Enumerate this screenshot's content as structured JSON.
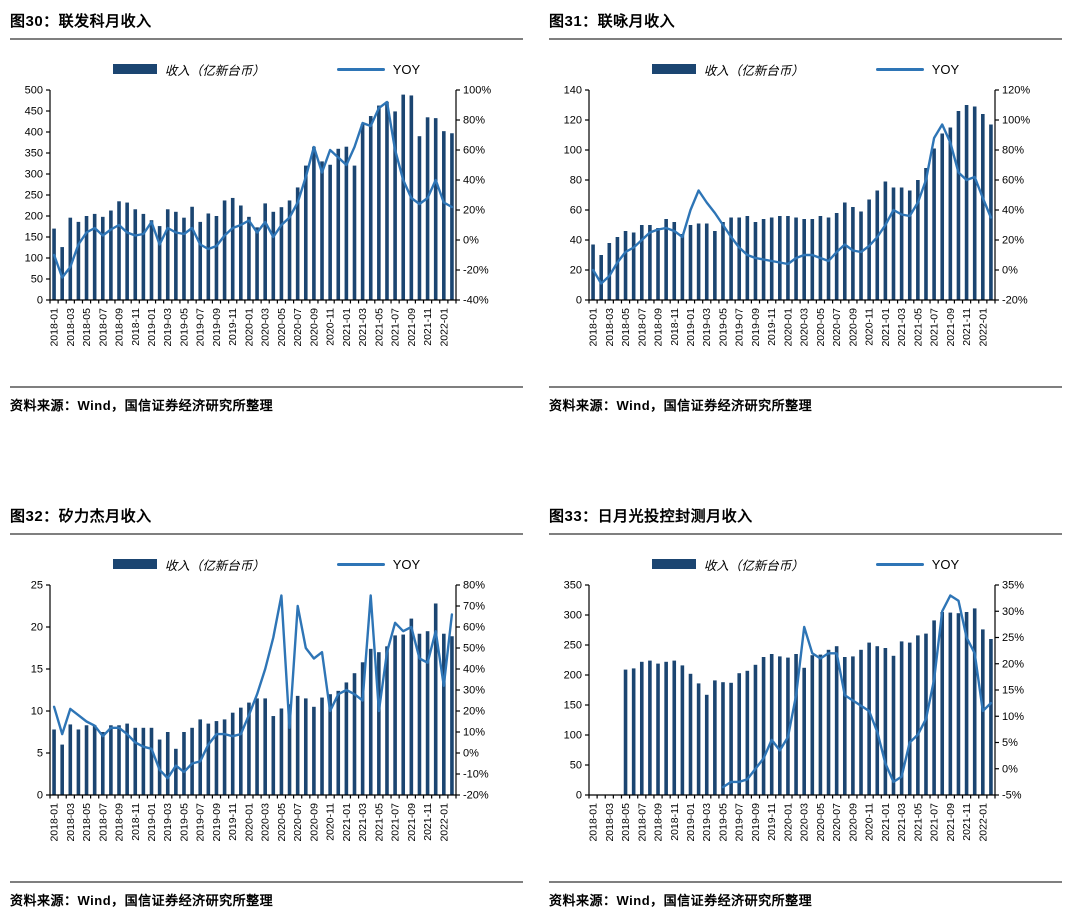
{
  "page": {
    "source_note": "资料来源：Wind，国信证券经济研究所整理"
  },
  "chart_data": [
    {
      "type": "bar+line",
      "title": "图30：联发科月收入",
      "legend_position": "top-center",
      "grid": false,
      "categories": [
        "2018-01",
        "2018-02",
        "2018-03",
        "2018-04",
        "2018-05",
        "2018-06",
        "2018-07",
        "2018-08",
        "2018-09",
        "2018-10",
        "2018-11",
        "2018-12",
        "2019-01",
        "2019-02",
        "2019-03",
        "2019-04",
        "2019-05",
        "2019-06",
        "2019-07",
        "2019-08",
        "2019-09",
        "2019-10",
        "2019-11",
        "2019-12",
        "2020-01",
        "2020-02",
        "2020-03",
        "2020-04",
        "2020-05",
        "2020-06",
        "2020-07",
        "2020-08",
        "2020-09",
        "2020-10",
        "2020-11",
        "2020-12",
        "2021-01",
        "2021-02",
        "2021-03",
        "2021-04",
        "2021-05",
        "2021-06",
        "2021-07",
        "2021-08",
        "2021-09",
        "2021-10",
        "2021-11",
        "2021-12",
        "2022-01",
        "2022-02"
      ],
      "left_axis": {
        "min": 0,
        "max": 500,
        "step": 50,
        "suffix": ""
      },
      "right_axis": {
        "min": -40,
        "max": 100,
        "step": 20,
        "suffix": "%"
      },
      "series": [
        {
          "name": "收入（亿新台币）",
          "type": "bar",
          "axis": "left",
          "color": "#1b4571",
          "values": [
            170,
            126,
            196,
            186,
            200,
            205,
            198,
            213,
            235,
            232,
            216,
            205,
            190,
            176,
            216,
            210,
            196,
            222,
            186,
            206,
            200,
            237,
            243,
            225,
            198,
            173,
            230,
            210,
            221,
            237,
            268,
            320,
            365,
            330,
            322,
            360,
            365,
            320,
            419,
            438,
            463,
            472,
            449,
            489,
            487,
            390,
            435,
            433,
            402,
            397
          ]
        },
        {
          "name": "YOY",
          "type": "line",
          "axis": "right",
          "color": "#2e75b6",
          "values": [
            -10,
            -25,
            -18,
            -3,
            5,
            8,
            3,
            7,
            10,
            5,
            3,
            4,
            12,
            -3,
            8,
            5,
            4,
            8,
            -3,
            -6,
            -4,
            3,
            8,
            10,
            13,
            5,
            12,
            2,
            10,
            15,
            25,
            42,
            62,
            45,
            60,
            55,
            50,
            62,
            78,
            76,
            88,
            92,
            60,
            40,
            28,
            24,
            28,
            40,
            25,
            22
          ]
        }
      ]
    },
    {
      "type": "bar+line",
      "title": "图31：联咏月收入",
      "legend_position": "top-center",
      "grid": false,
      "categories": [
        "2018-01",
        "2018-02",
        "2018-03",
        "2018-04",
        "2018-05",
        "2018-06",
        "2018-07",
        "2018-08",
        "2018-09",
        "2018-10",
        "2018-11",
        "2018-12",
        "2019-01",
        "2019-02",
        "2019-03",
        "2019-04",
        "2019-05",
        "2019-06",
        "2019-07",
        "2019-08",
        "2019-09",
        "2019-10",
        "2019-11",
        "2019-12",
        "2020-01",
        "2020-02",
        "2020-03",
        "2020-04",
        "2020-05",
        "2020-06",
        "2020-07",
        "2020-08",
        "2020-09",
        "2020-10",
        "2020-11",
        "2020-12",
        "2021-01",
        "2021-02",
        "2021-03",
        "2021-04",
        "2021-05",
        "2021-06",
        "2021-07",
        "2021-08",
        "2021-09",
        "2021-10",
        "2021-11",
        "2021-12",
        "2022-01",
        "2022-02"
      ],
      "left_axis": {
        "min": 0,
        "max": 140,
        "step": 20,
        "suffix": ""
      },
      "right_axis": {
        "min": -20,
        "max": 120,
        "step": 20,
        "suffix": "%"
      },
      "series": [
        {
          "name": "收入（亿新台币）",
          "type": "bar",
          "axis": "left",
          "color": "#1b4571",
          "values": [
            37,
            30,
            38,
            42,
            46,
            45,
            50,
            50,
            48,
            54,
            52,
            44,
            50,
            51,
            51,
            46,
            52,
            55,
            55,
            56,
            52,
            54,
            55,
            56,
            56,
            55,
            54,
            54,
            56,
            55,
            58,
            65,
            62,
            59,
            67,
            73,
            79,
            75,
            75,
            73,
            80,
            88,
            101,
            111,
            115,
            126,
            130,
            129,
            124,
            117
          ]
        },
        {
          "name": "YOY",
          "type": "line",
          "axis": "right",
          "color": "#2e75b6",
          "values": [
            0,
            -9,
            -4,
            5,
            12,
            15,
            20,
            25,
            27,
            28,
            26,
            22,
            40,
            53,
            45,
            38,
            30,
            22,
            15,
            10,
            8,
            7,
            6,
            5,
            4,
            8,
            10,
            10,
            8,
            6,
            12,
            17,
            13,
            12,
            16,
            22,
            30,
            40,
            37,
            36,
            45,
            60,
            88,
            97,
            85,
            65,
            60,
            62,
            48,
            35
          ]
        }
      ]
    },
    {
      "type": "bar+line",
      "title": "图32：矽力杰月收入",
      "legend_position": "top-center",
      "grid": false,
      "categories": [
        "2018-01",
        "2018-02",
        "2018-03",
        "2018-04",
        "2018-05",
        "2018-06",
        "2018-07",
        "2018-08",
        "2018-09",
        "2018-10",
        "2018-11",
        "2018-12",
        "2019-01",
        "2019-02",
        "2019-03",
        "2019-04",
        "2019-05",
        "2019-06",
        "2019-07",
        "2019-08",
        "2019-09",
        "2019-10",
        "2019-11",
        "2019-12",
        "2020-01",
        "2020-02",
        "2020-03",
        "2020-04",
        "2020-05",
        "2020-06",
        "2020-07",
        "2020-08",
        "2020-09",
        "2020-10",
        "2020-11",
        "2020-12",
        "2021-01",
        "2021-02",
        "2021-03",
        "2021-04",
        "2021-05",
        "2021-06",
        "2021-07",
        "2021-08",
        "2021-09",
        "2021-10",
        "2021-11",
        "2021-12",
        "2022-01",
        "2022-02"
      ],
      "left_axis": {
        "min": 0,
        "max": 25,
        "step": 5,
        "suffix": ""
      },
      "right_axis": {
        "min": -20,
        "max": 80,
        "step": 10,
        "suffix": "%"
      },
      "series": [
        {
          "name": "收入（亿新台币）",
          "type": "bar",
          "axis": "left",
          "color": "#1b4571",
          "values": [
            7.8,
            6.0,
            8.4,
            7.8,
            8.3,
            8.3,
            7.5,
            8.3,
            8.3,
            8.5,
            8.0,
            8.0,
            8.0,
            6.6,
            7.5,
            5.5,
            7.5,
            8.0,
            9.0,
            8.5,
            8.8,
            9.0,
            9.8,
            10.4,
            11.0,
            11.5,
            11.5,
            9.4,
            10.3,
            10.8,
            11.8,
            11.5,
            10.5,
            11.6,
            12.0,
            12.4,
            13.4,
            14.5,
            15.8,
            17.4,
            17.0,
            17.7,
            19.0,
            19.1,
            21.0,
            19.2,
            19.5,
            22.8,
            19.2,
            18.9
          ]
        },
        {
          "name": "YOY",
          "type": "line",
          "axis": "right",
          "color": "#2e75b6",
          "values": [
            22,
            9,
            21,
            18,
            15,
            13,
            8,
            12,
            12,
            9,
            5,
            3,
            2,
            -8,
            -12,
            -6,
            -9,
            -5,
            -4,
            4,
            9,
            9,
            8,
            9,
            18,
            28,
            40,
            55,
            75,
            12,
            70,
            50,
            45,
            48,
            20,
            28,
            30,
            28,
            25,
            75,
            20,
            48,
            62,
            58,
            60,
            45,
            43,
            58,
            32,
            66
          ]
        }
      ]
    },
    {
      "type": "bar+line",
      "title": "图33：日月光投控封测月收入",
      "legend_position": "top-center",
      "grid": false,
      "categories": [
        "2018-01",
        "2018-02",
        "2018-03",
        "2018-04",
        "2018-05",
        "2018-06",
        "2018-07",
        "2018-08",
        "2018-09",
        "2018-10",
        "2018-11",
        "2018-12",
        "2019-01",
        "2019-02",
        "2019-03",
        "2019-04",
        "2019-05",
        "2019-06",
        "2019-07",
        "2019-08",
        "2019-09",
        "2019-10",
        "2019-11",
        "2019-12",
        "2020-01",
        "2020-02",
        "2020-03",
        "2020-04",
        "2020-05",
        "2020-06",
        "2020-07",
        "2020-08",
        "2020-09",
        "2020-10",
        "2020-11",
        "2020-12",
        "2021-01",
        "2021-02",
        "2021-03",
        "2021-04",
        "2021-05",
        "2021-06",
        "2021-07",
        "2021-08",
        "2021-09",
        "2021-10",
        "2021-11",
        "2021-12",
        "2022-01",
        "2022-02"
      ],
      "left_axis": {
        "min": 0,
        "max": 350,
        "step": 50,
        "suffix": ""
      },
      "right_axis": {
        "min": -5,
        "max": 35,
        "step": 5,
        "suffix": "%"
      },
      "series": [
        {
          "name": "收入（亿新台币）",
          "type": "bar",
          "axis": "left",
          "color": "#1b4571",
          "values": [
            null,
            null,
            null,
            null,
            209,
            211,
            222,
            224,
            219,
            222,
            224,
            216,
            202,
            186,
            167,
            191,
            188,
            187,
            203,
            207,
            217,
            230,
            235,
            231,
            229,
            235,
            212,
            233,
            234,
            242,
            248,
            230,
            231,
            242,
            254,
            248,
            245,
            232,
            256,
            254,
            266,
            269,
            291,
            305,
            304,
            303,
            305,
            311,
            276,
            260
          ]
        },
        {
          "name": "YOY",
          "type": "line",
          "axis": "right",
          "color": "#2e75b6",
          "values": [
            null,
            null,
            null,
            null,
            null,
            null,
            null,
            null,
            null,
            null,
            null,
            null,
            null,
            null,
            null,
            null,
            -3.5,
            -2.5,
            -2.5,
            -2,
            0,
            2,
            5.5,
            3.5,
            6,
            14,
            27,
            22,
            21,
            22,
            22,
            14,
            13,
            12,
            11,
            7,
            1,
            -2.5,
            -1.5,
            5,
            6.5,
            9.5,
            17,
            30,
            33,
            32,
            25,
            22,
            11,
            12.5
          ]
        }
      ]
    }
  ]
}
